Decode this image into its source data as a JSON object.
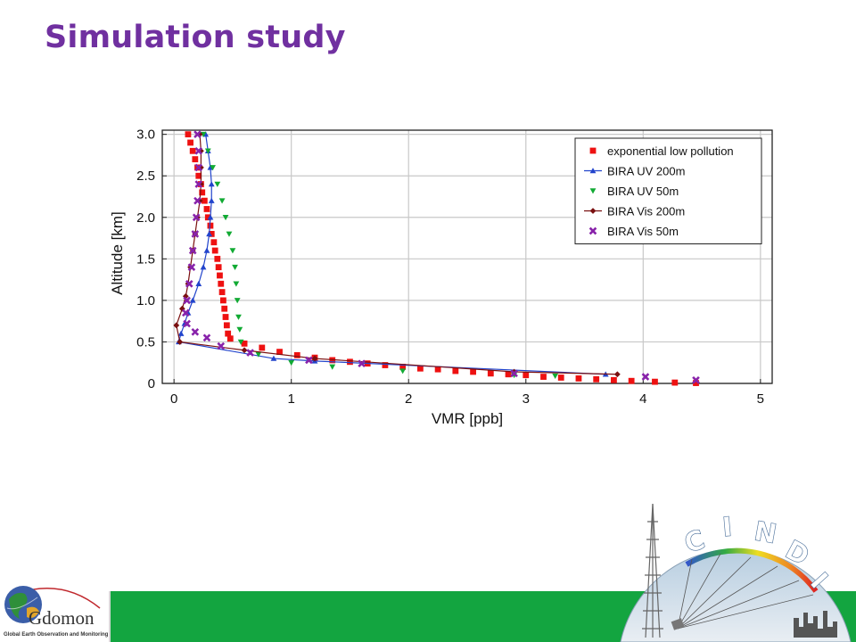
{
  "slide": {
    "title": "Simulation study"
  },
  "footer": {
    "left_logo_wordmark": "Gdomon",
    "left_logo_tagline": "Global Earth Observation and Monitoring",
    "right_logo_letters": [
      "C",
      "I",
      "N",
      "D",
      "I"
    ]
  },
  "colors": {
    "title": "#7030a0",
    "footer_green": "#13a540"
  },
  "chart_data": {
    "type": "scatter",
    "xlabel": "VMR [ppb]",
    "ylabel": "Altitude [km]",
    "xlim": [
      -0.1,
      5.1
    ],
    "ylim": [
      0,
      3.05
    ],
    "xticks": [
      0,
      1,
      2,
      3,
      4,
      5
    ],
    "yticks": [
      0,
      0.5,
      1.0,
      1.5,
      2.0,
      2.5,
      3.0
    ],
    "ytick_labels": [
      "0",
      "0.5",
      "1.0",
      "1.5",
      "2.0",
      "2.5",
      "3.0"
    ],
    "grid": true,
    "legend_position": "top-right",
    "series": [
      {
        "name": "exponential low pollution",
        "color": "#ee1111",
        "marker": "square",
        "line": false,
        "points": [
          [
            0.12,
            3.0
          ],
          [
            0.14,
            2.9
          ],
          [
            0.16,
            2.8
          ],
          [
            0.18,
            2.7
          ],
          [
            0.2,
            2.6
          ],
          [
            0.21,
            2.5
          ],
          [
            0.23,
            2.4
          ],
          [
            0.24,
            2.3
          ],
          [
            0.26,
            2.2
          ],
          [
            0.28,
            2.1
          ],
          [
            0.29,
            2.0
          ],
          [
            0.31,
            1.9
          ],
          [
            0.32,
            1.8
          ],
          [
            0.34,
            1.7
          ],
          [
            0.35,
            1.6
          ],
          [
            0.37,
            1.5
          ],
          [
            0.38,
            1.4
          ],
          [
            0.39,
            1.3
          ],
          [
            0.4,
            1.2
          ],
          [
            0.41,
            1.1
          ],
          [
            0.42,
            1.0
          ],
          [
            0.43,
            0.9
          ],
          [
            0.44,
            0.8
          ],
          [
            0.45,
            0.7
          ],
          [
            0.46,
            0.6
          ],
          [
            0.48,
            0.54
          ],
          [
            0.6,
            0.48
          ],
          [
            0.75,
            0.43
          ],
          [
            0.9,
            0.38
          ],
          [
            1.05,
            0.34
          ],
          [
            1.2,
            0.31
          ],
          [
            1.35,
            0.28
          ],
          [
            1.5,
            0.26
          ],
          [
            1.65,
            0.24
          ],
          [
            1.8,
            0.22
          ],
          [
            1.95,
            0.2
          ],
          [
            2.1,
            0.18
          ],
          [
            2.25,
            0.17
          ],
          [
            2.4,
            0.15
          ],
          [
            2.55,
            0.14
          ],
          [
            2.7,
            0.12
          ],
          [
            2.85,
            0.11
          ],
          [
            3.0,
            0.1
          ],
          [
            3.15,
            0.08
          ],
          [
            3.3,
            0.07
          ],
          [
            3.45,
            0.06
          ],
          [
            3.6,
            0.05
          ],
          [
            3.75,
            0.04
          ],
          [
            3.9,
            0.03
          ],
          [
            4.1,
            0.02
          ],
          [
            4.27,
            0.01
          ],
          [
            4.45,
            0.005
          ]
        ]
      },
      {
        "name": "BIRA UV 200m",
        "color": "#2244cc",
        "marker": "triangle-up",
        "line": true,
        "points": [
          [
            0.27,
            3.0
          ],
          [
            0.29,
            2.8
          ],
          [
            0.31,
            2.6
          ],
          [
            0.32,
            2.4
          ],
          [
            0.32,
            2.2
          ],
          [
            0.31,
            2.0
          ],
          [
            0.3,
            1.8
          ],
          [
            0.28,
            1.6
          ],
          [
            0.25,
            1.4
          ],
          [
            0.21,
            1.2
          ],
          [
            0.16,
            1.0
          ],
          [
            0.12,
            0.85
          ],
          [
            0.09,
            0.72
          ],
          [
            0.06,
            0.6
          ],
          [
            0.04,
            0.5
          ],
          [
            0.85,
            0.3
          ],
          [
            1.2,
            0.27
          ],
          [
            3.68,
            0.11
          ]
        ]
      },
      {
        "name": "BIRA UV 50m",
        "color": "#11aa33",
        "marker": "triangle-down",
        "line": false,
        "points": [
          [
            0.25,
            3.0
          ],
          [
            0.29,
            2.8
          ],
          [
            0.33,
            2.6
          ],
          [
            0.37,
            2.4
          ],
          [
            0.41,
            2.2
          ],
          [
            0.44,
            2.0
          ],
          [
            0.47,
            1.8
          ],
          [
            0.5,
            1.6
          ],
          [
            0.52,
            1.4
          ],
          [
            0.53,
            1.2
          ],
          [
            0.54,
            1.0
          ],
          [
            0.55,
            0.8
          ],
          [
            0.56,
            0.65
          ],
          [
            0.57,
            0.5
          ],
          [
            0.72,
            0.35
          ],
          [
            1.0,
            0.25
          ],
          [
            1.35,
            0.2
          ],
          [
            1.95,
            0.15
          ],
          [
            2.9,
            0.1
          ],
          [
            3.25,
            0.09
          ]
        ]
      },
      {
        "name": "BIRA Vis 200m",
        "color": "#7a1010",
        "marker": "diamond",
        "line": true,
        "points": [
          [
            0.22,
            3.0
          ],
          [
            0.23,
            2.8
          ],
          [
            0.23,
            2.6
          ],
          [
            0.23,
            2.4
          ],
          [
            0.22,
            2.2
          ],
          [
            0.2,
            2.0
          ],
          [
            0.18,
            1.8
          ],
          [
            0.16,
            1.6
          ],
          [
            0.14,
            1.4
          ],
          [
            0.12,
            1.2
          ],
          [
            0.1,
            1.05
          ],
          [
            0.07,
            0.9
          ],
          [
            0.02,
            0.7
          ],
          [
            0.05,
            0.5
          ],
          [
            0.6,
            0.4
          ],
          [
            1.2,
            0.3
          ],
          [
            2.9,
            0.14
          ],
          [
            3.78,
            0.11
          ]
        ]
      },
      {
        "name": "BIRA Vis 50m",
        "color": "#8822aa",
        "marker": "x",
        "line": false,
        "points": [
          [
            0.2,
            3.0
          ],
          [
            0.21,
            2.8
          ],
          [
            0.21,
            2.6
          ],
          [
            0.21,
            2.4
          ],
          [
            0.2,
            2.2
          ],
          [
            0.19,
            2.0
          ],
          [
            0.18,
            1.8
          ],
          [
            0.16,
            1.6
          ],
          [
            0.15,
            1.4
          ],
          [
            0.13,
            1.2
          ],
          [
            0.11,
            1.0
          ],
          [
            0.1,
            0.85
          ],
          [
            0.11,
            0.72
          ],
          [
            0.18,
            0.62
          ],
          [
            0.28,
            0.55
          ],
          [
            0.4,
            0.45
          ],
          [
            0.65,
            0.37
          ],
          [
            1.15,
            0.28
          ],
          [
            1.6,
            0.24
          ],
          [
            2.9,
            0.12
          ],
          [
            4.02,
            0.08
          ],
          [
            4.45,
            0.04
          ]
        ]
      }
    ]
  }
}
